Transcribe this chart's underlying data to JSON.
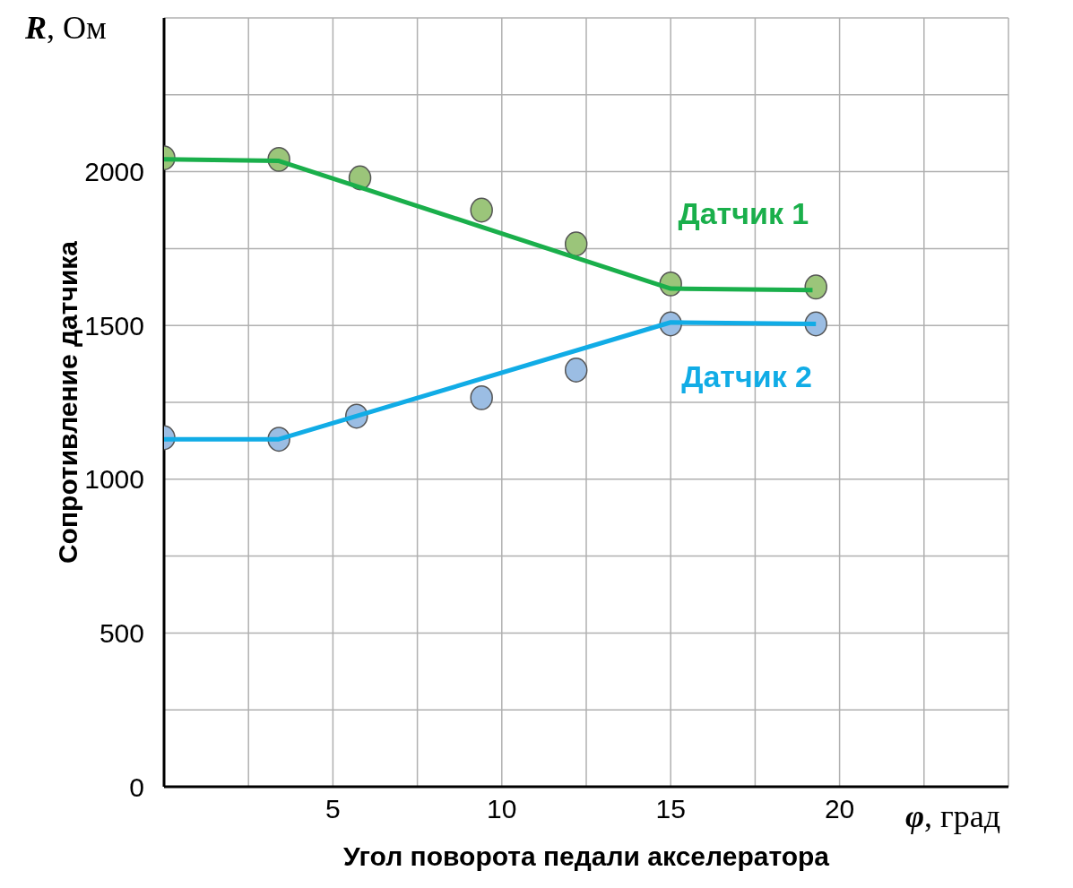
{
  "chart_data": {
    "type": "scatter",
    "xlabel": "Угол поворота педали акселератора",
    "ylabel": "Сопротивление датчика",
    "annotations": [
      "R, Ом",
      "φ, град"
    ],
    "xlim": [
      0,
      25
    ],
    "ylim": [
      0,
      2500
    ],
    "xticks": [
      {
        "value": 0,
        "label": null
      },
      {
        "value": 2.5,
        "label": null
      },
      5,
      {
        "value": 7.5,
        "label": null
      },
      10,
      {
        "value": 12.5,
        "label": null
      },
      15,
      {
        "value": 17.5,
        "label": null
      },
      20,
      {
        "value": 22.5,
        "label": null
      },
      {
        "value": 25,
        "label": null
      }
    ],
    "yticks": [
      0,
      {
        "value": 250,
        "label": null
      },
      500,
      {
        "value": 750,
        "label": null
      },
      1000,
      {
        "value": 1250,
        "label": null
      },
      1500,
      {
        "value": 1750,
        "label": null
      },
      2000,
      {
        "value": 2250,
        "label": null
      },
      {
        "value": 2500,
        "label": null
      }
    ],
    "grid": true,
    "legend": false,
    "marker": "circle",
    "series": [
      {
        "color": "#9bc57a",
        "x": [
          0,
          3.4,
          5.8,
          9.4,
          12.2,
          15,
          19.3
        ],
        "values": [
          2045,
          2040,
          1980,
          1875,
          1765,
          1635,
          1625
        ]
      },
      {
        "color": "#9bbde3",
        "x": [
          0,
          3.4,
          5.7,
          9.4,
          12.2,
          15,
          19.3
        ],
        "values": [
          1135,
          1130,
          1205,
          1265,
          1355,
          1505,
          1505
        ]
      },
      {
        "type": "line",
        "name": "Датчик 1",
        "color": "#1aaf4b",
        "x": [
          0,
          3.4,
          15,
          19.2
        ],
        "values": [
          2040,
          2035,
          1620,
          1615
        ],
        "marker": "none"
      },
      {
        "type": "line",
        "name": "Датчик 2",
        "color": "#11ace6",
        "x": [
          0,
          3.4,
          15,
          19.3
        ],
        "values": [
          1130,
          1130,
          1510,
          1505
        ],
        "marker": "none"
      }
    ]
  }
}
